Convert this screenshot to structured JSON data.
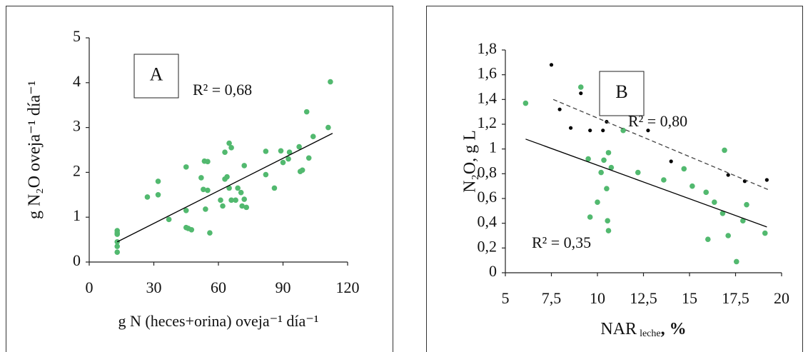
{
  "chart_data": [
    {
      "type": "scatter",
      "panel_label": "A",
      "annotation": "R² = 0,68",
      "x_label": "g N (heces+orina) oveja⁻¹ día⁻¹",
      "y_label": "g N₂O oveja⁻¹ día⁻¹",
      "xlim": [
        0,
        120
      ],
      "ylim": [
        0,
        5
      ],
      "xticks": [
        0,
        30,
        60,
        90,
        120
      ],
      "yticks": [
        0,
        1,
        2,
        3,
        4,
        5
      ],
      "series": [
        {
          "color": "#52b96f",
          "x": [
            13,
            13,
            13,
            13,
            13,
            13,
            27,
            32,
            32,
            37,
            45,
            45,
            45,
            46,
            47.5,
            52,
            53.5,
            55,
            53,
            55,
            54,
            56,
            61,
            62,
            64,
            63,
            63,
            65,
            66,
            65,
            66,
            68,
            69,
            70.5,
            71,
            72,
            72,
            73,
            82,
            82,
            86,
            89,
            90,
            92.5,
            93,
            97.5,
            98,
            99,
            101,
            102,
            104,
            111,
            112
          ],
          "y": [
            0.7,
            0.65,
            0.62,
            0.45,
            0.35,
            0.22,
            1.45,
            1.8,
            1.5,
            0.95,
            2.12,
            1.15,
            0.77,
            0.75,
            0.72,
            1.88,
            2.25,
            2.24,
            1.62,
            1.6,
            1.18,
            0.65,
            1.38,
            1.25,
            1.9,
            1.85,
            2.45,
            2.65,
            2.55,
            1.65,
            1.38,
            1.38,
            1.65,
            1.55,
            1.25,
            1.4,
            2.15,
            1.22,
            2.47,
            1.95,
            1.65,
            2.48,
            2.22,
            2.3,
            2.45,
            2.57,
            2.02,
            2.05,
            3.35,
            2.32,
            2.8,
            3.0,
            4.02
          ]
        }
      ],
      "trendlines": [
        {
          "color": "#000000",
          "dashed": false,
          "x": [
            13,
            113
          ],
          "y": [
            0.45,
            2.87
          ]
        }
      ]
    },
    {
      "type": "scatter",
      "panel_label": "B",
      "annotations": [
        "R² = 0,80",
        "R² = 0,35"
      ],
      "x_label": [
        "NAR",
        "leche",
        ", %"
      ],
      "y_label": "N₂O, g L",
      "xlim": [
        5,
        20
      ],
      "ylim": [
        0,
        1.8
      ],
      "xticks": [
        5,
        {
          "value": 7.5,
          "label": "7,5"
        },
        10,
        {
          "value": 12.5,
          "label": "12,5"
        },
        15,
        {
          "value": 17.5,
          "label": "17,5"
        },
        20
      ],
      "yticks": [
        0,
        {
          "value": 0.2,
          "label": "0,2"
        },
        {
          "value": 0.4,
          "label": "0,4"
        },
        {
          "value": 0.6,
          "label": "0,6"
        },
        {
          "value": 0.8,
          "label": "0,8"
        },
        1,
        {
          "value": 1.2,
          "label": "1,2"
        },
        {
          "value": 1.4,
          "label": "1,4"
        },
        {
          "value": 1.6,
          "label": "1,6"
        },
        {
          "value": 1.8,
          "label": "1,8"
        }
      ],
      "series": [
        {
          "color": "#000000",
          "x": [
            7.5,
            7.95,
            8.55,
            9.1,
            9.6,
            10.3,
            10.5,
            12.75,
            14.0,
            17.1,
            18.0,
            19.2
          ],
          "y": [
            1.68,
            1.32,
            1.17,
            1.45,
            1.15,
            1.15,
            1.22,
            1.15,
            0.9,
            0.79,
            0.74,
            0.75
          ]
        },
        {
          "color": "#52b96f",
          "x": [
            6.1,
            9.1,
            9.5,
            9.6,
            10.0,
            10.2,
            10.35,
            10.6,
            10.75,
            10.5,
            10.55,
            10.6,
            11.4,
            12.2,
            13.6,
            14.7,
            15.15,
            15.9,
            16.0,
            16.35,
            16.8,
            16.9,
            17.1,
            17.55,
            17.9,
            18.1,
            19.1
          ],
          "y": [
            1.37,
            1.5,
            0.92,
            0.45,
            0.57,
            0.81,
            0.91,
            0.97,
            0.85,
            0.68,
            0.42,
            0.34,
            1.15,
            0.81,
            0.75,
            0.84,
            0.7,
            0.65,
            0.27,
            0.57,
            0.48,
            0.99,
            0.3,
            0.09,
            0.42,
            0.55,
            0.32
          ]
        }
      ],
      "trendlines": [
        {
          "color": "#444444",
          "dashed": true,
          "x": [
            7.6,
            19.3
          ],
          "y": [
            1.4,
            0.67
          ]
        },
        {
          "color": "#000000",
          "dashed": false,
          "x": [
            6.1,
            19.2
          ],
          "y": [
            1.08,
            0.37
          ]
        }
      ]
    }
  ]
}
